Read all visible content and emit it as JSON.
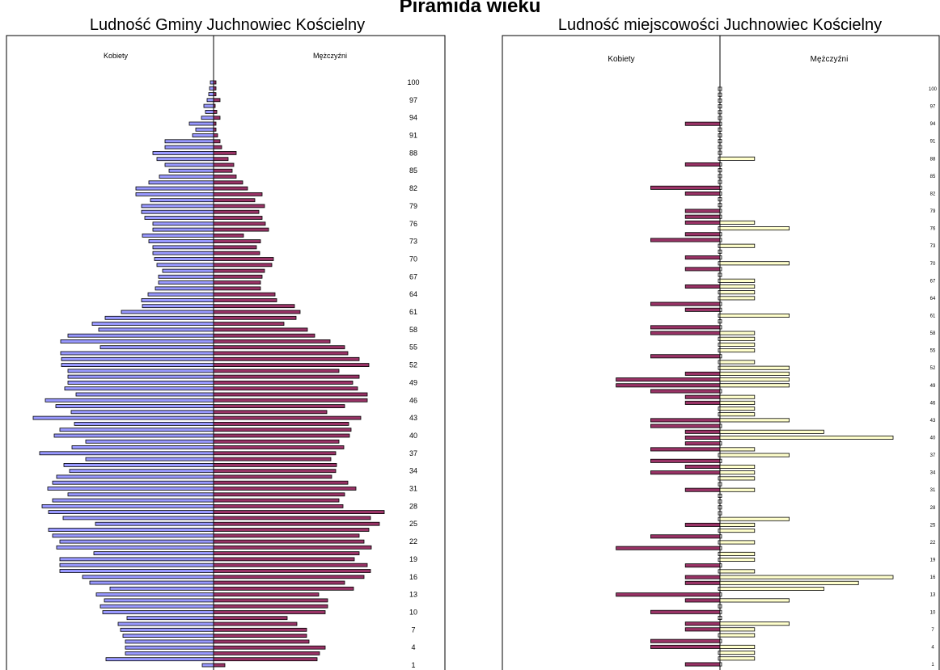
{
  "title": "Piramida wieku",
  "chart_data": [
    {
      "type": "bar",
      "title": "Ludność Gminy Juchnowiec Kościelny",
      "left_label": "Kobiety",
      "right_label": "Mężczyźni",
      "orientation": "horizontal-pyramid",
      "ages": [
        1,
        2,
        3,
        4,
        5,
        6,
        7,
        8,
        9,
        10,
        11,
        12,
        13,
        14,
        15,
        16,
        17,
        18,
        19,
        20,
        21,
        22,
        23,
        24,
        25,
        26,
        27,
        28,
        29,
        30,
        31,
        32,
        33,
        34,
        35,
        36,
        37,
        38,
        39,
        40,
        41,
        42,
        43,
        44,
        45,
        46,
        47,
        48,
        49,
        50,
        51,
        52,
        53,
        54,
        55,
        56,
        57,
        58,
        59,
        60,
        61,
        62,
        63,
        64,
        65,
        66,
        67,
        68,
        69,
        70,
        71,
        72,
        73,
        74,
        75,
        76,
        77,
        78,
        79,
        80,
        81,
        82,
        83,
        84,
        85,
        86,
        87,
        88,
        89,
        90,
        91,
        92,
        93,
        94,
        95,
        96,
        97,
        98,
        99,
        100
      ],
      "tick_labels": [
        "1",
        "4",
        "7",
        "10",
        "13",
        "16",
        "19",
        "22",
        "25",
        "28",
        "31",
        "34",
        "37",
        "40",
        "43",
        "46",
        "49",
        "52",
        "55",
        "58",
        "61",
        "64",
        "67",
        "70",
        "73",
        "76",
        "79",
        "82",
        "85",
        "88",
        "91",
        "94",
        "97",
        "100"
      ],
      "series": [
        {
          "name": "Kobiety",
          "color": "#9999ff",
          "values": [
            14,
            133,
            109,
            109,
            109,
            112,
            115,
            118,
            107,
            137,
            140,
            135,
            145,
            128,
            153,
            162,
            190,
            190,
            190,
            148,
            194,
            190,
            199,
            204,
            146,
            186,
            204,
            212,
            199,
            180,
            205,
            199,
            194,
            178,
            185,
            158,
            215,
            175,
            158,
            197,
            190,
            172,
            223,
            176,
            195,
            208,
            170,
            184,
            180,
            180,
            180,
            188,
            188,
            189,
            140,
            189,
            180,
            142,
            150,
            134,
            114,
            88,
            89,
            81,
            72,
            68,
            68,
            63,
            70,
            73,
            75,
            75,
            80,
            88,
            75,
            75,
            85,
            89,
            89,
            78,
            96,
            96,
            80,
            67,
            55,
            60,
            70,
            75,
            60,
            60,
            26,
            22,
            30,
            15,
            10,
            12,
            8,
            6,
            5,
            4
          ]
        },
        {
          "name": "Mężczyźni",
          "color": "#993366",
          "values": [
            14,
            128,
            131,
            138,
            118,
            115,
            115,
            103,
            91,
            138,
            141,
            141,
            130,
            173,
            162,
            186,
            194,
            190,
            174,
            180,
            195,
            186,
            180,
            192,
            205,
            194,
            211,
            160,
            155,
            162,
            176,
            166,
            146,
            151,
            152,
            145,
            151,
            161,
            155,
            168,
            170,
            167,
            182,
            140,
            162,
            190,
            190,
            178,
            172,
            180,
            155,
            192,
            180,
            166,
            162,
            144,
            125,
            116,
            87,
            102,
            107,
            100,
            78,
            76,
            58,
            58,
            60,
            63,
            72,
            74,
            57,
            53,
            58,
            37,
            68,
            64,
            60,
            56,
            63,
            51,
            60,
            42,
            36,
            28,
            23,
            25,
            18,
            28,
            10,
            8,
            5,
            3,
            3,
            8,
            4,
            2,
            8,
            3,
            3,
            3
          ]
        }
      ],
      "xlim": [
        0,
        230
      ]
    },
    {
      "type": "bar",
      "title": "Ludność miejscowości Juchnowiec Kościelny",
      "left_label": "Kobiety",
      "right_label": "Mężczyźni",
      "orientation": "horizontal-pyramid",
      "ages": [
        1,
        2,
        3,
        4,
        5,
        6,
        7,
        8,
        9,
        10,
        11,
        12,
        13,
        14,
        15,
        16,
        17,
        18,
        19,
        20,
        21,
        22,
        23,
        24,
        25,
        26,
        27,
        28,
        29,
        30,
        31,
        32,
        33,
        34,
        35,
        36,
        37,
        38,
        39,
        40,
        41,
        42,
        43,
        44,
        45,
        46,
        47,
        48,
        49,
        50,
        51,
        52,
        53,
        54,
        55,
        56,
        57,
        58,
        59,
        60,
        61,
        62,
        63,
        64,
        65,
        66,
        67,
        68,
        69,
        70,
        71,
        72,
        73,
        74,
        75,
        76,
        77,
        78,
        79,
        80,
        81,
        82,
        83,
        84,
        85,
        86,
        87,
        88,
        89,
        90,
        91,
        92,
        93,
        94,
        95,
        96,
        97,
        98,
        99,
        100
      ],
      "tick_labels": [
        "1",
        "4",
        "7",
        "10",
        "13",
        "16",
        "19",
        "22",
        "25",
        "28",
        "31",
        "34",
        "37",
        "40",
        "43",
        "46",
        "49",
        "52",
        "55",
        "58",
        "61",
        "64",
        "67",
        "70",
        "73",
        "76",
        "79",
        "82",
        "85",
        "88",
        "91",
        "94",
        "97",
        "100"
      ],
      "series": [
        {
          "name": "Kobiety",
          "color": "#993366",
          "values": [
            1,
            0,
            0,
            2,
            2,
            0,
            1,
            1,
            0,
            2,
            0,
            1,
            3,
            0,
            1,
            1,
            0,
            1,
            0,
            0,
            3,
            0,
            2,
            0,
            1,
            0,
            0,
            0,
            0,
            0,
            1,
            0,
            0,
            2,
            1,
            2,
            0,
            2,
            1,
            1,
            1,
            2,
            2,
            0,
            0,
            1,
            1,
            2,
            3,
            3,
            1,
            0,
            0,
            2,
            0,
            0,
            0,
            2,
            2,
            0,
            0,
            1,
            2,
            0,
            0,
            1,
            0,
            0,
            1,
            0,
            1,
            0,
            0,
            2,
            1,
            0,
            1,
            1,
            1,
            0,
            0,
            1,
            2,
            0,
            0,
            0,
            1,
            0,
            0,
            0,
            0,
            0,
            0,
            1,
            0,
            0,
            0,
            0,
            0,
            0
          ]
        },
        {
          "name": "Mężczyźni",
          "color": "#ffffcc",
          "values": [
            0,
            1,
            1,
            1,
            0,
            1,
            1,
            2,
            0,
            0,
            0,
            2,
            0,
            3,
            4,
            5,
            1,
            0,
            1,
            1,
            0,
            1,
            0,
            1,
            1,
            2,
            0,
            0,
            0,
            0,
            1,
            0,
            1,
            1,
            1,
            0,
            2,
            1,
            0,
            5,
            3,
            0,
            2,
            1,
            1,
            1,
            1,
            0,
            2,
            2,
            2,
            2,
            1,
            0,
            1,
            1,
            1,
            1,
            0,
            0,
            2,
            0,
            0,
            1,
            1,
            1,
            1,
            0,
            0,
            2,
            0,
            0,
            1,
            0,
            0,
            2,
            1,
            0,
            0,
            0,
            0,
            0,
            0,
            0,
            0,
            0,
            0,
            1,
            0,
            0,
            0,
            0,
            0,
            0,
            0,
            0,
            0,
            0,
            0,
            0
          ]
        }
      ],
      "xlim": [
        0,
        5
      ]
    }
  ]
}
